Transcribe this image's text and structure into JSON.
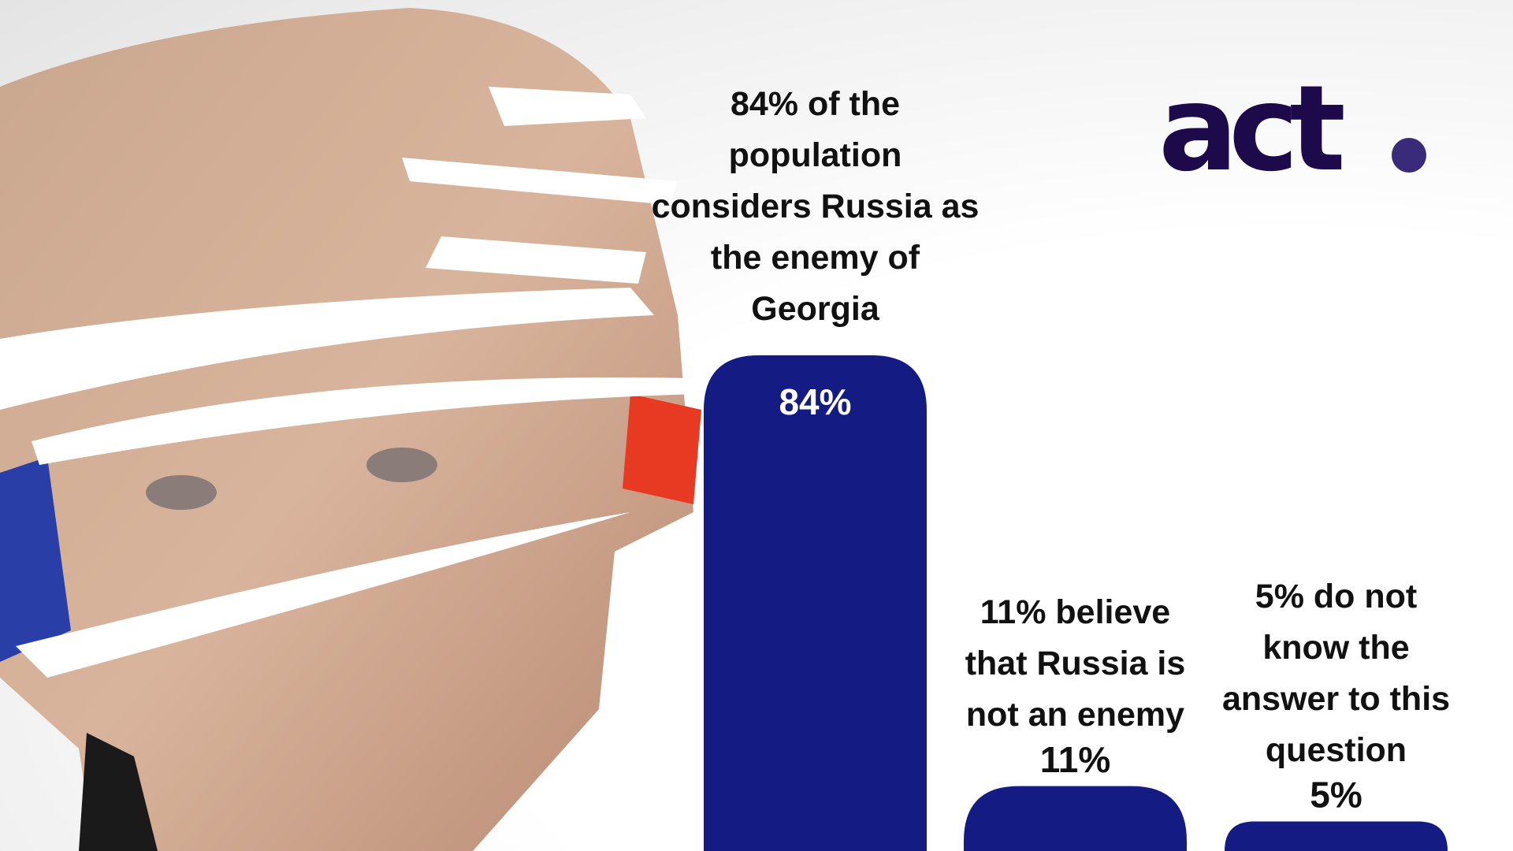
{
  "logo": "act",
  "chart_data": {
    "type": "bar",
    "categories": [
      "84% of the population considers Russia as the enemy of Georgia",
      "11% believe that Russia is not an enemy",
      "5% do not know the answer to this question"
    ],
    "values": [
      84,
      11,
      5
    ],
    "value_labels": [
      "84%",
      "11%",
      "5%"
    ],
    "color": "#141c84",
    "ylim": [
      0,
      100
    ]
  }
}
